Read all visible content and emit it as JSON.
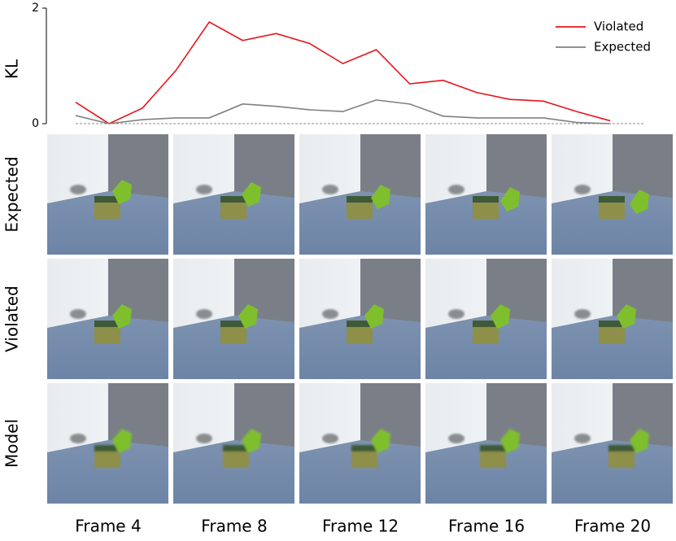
{
  "chart_data": {
    "type": "line",
    "ylabel": "KL",
    "categories": [
      null,
      null,
      null,
      null,
      null,
      null,
      null,
      null,
      null,
      null,
      null,
      null,
      null,
      null,
      null,
      null,
      null
    ],
    "series": [
      {
        "name": "Violated",
        "color": "#e8141c",
        "values": [
          0.37,
          0,
          0.27,
          0.92,
          1.76,
          1.44,
          1.56,
          1.39,
          1.04,
          1.28,
          0.69,
          0.75,
          0.54,
          0.42,
          0.39,
          0.21,
          0.05
        ]
      },
      {
        "name": "Expected",
        "color": "#808080",
        "values": [
          0.14,
          0,
          0.07,
          0.1,
          0.1,
          0.34,
          0.3,
          0.24,
          0.21,
          0.41,
          0.34,
          0.13,
          0.1,
          0.1,
          0.1,
          0.02,
          0
        ]
      }
    ],
    "ylim": [
      0,
      2
    ],
    "yticks": [
      0,
      2
    ],
    "legend": "upper right"
  },
  "image_grid": {
    "rows": [
      "Expected",
      "Violated",
      "Model"
    ],
    "columns": [
      "Frame 4",
      "Frame 8",
      "Frame 12",
      "Frame 16",
      "Frame 20"
    ]
  }
}
